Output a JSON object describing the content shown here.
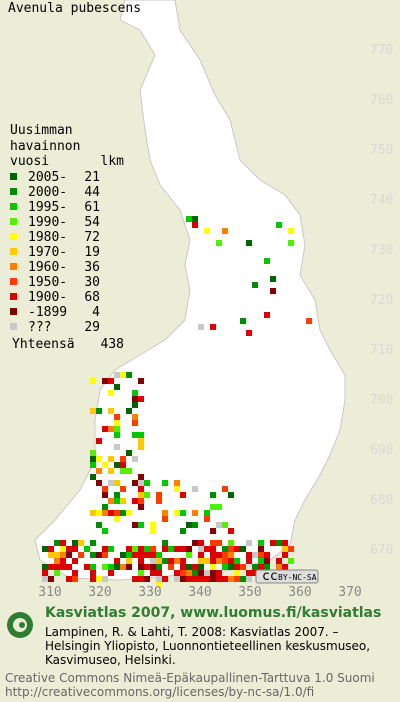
{
  "title": "Avenula pubescens",
  "legend": {
    "heading": [
      "Uusimman",
      "havainnon",
      "vuosi"
    ],
    "count_heading": "lkm",
    "rows": [
      {
        "label": "2005-",
        "count": 21,
        "color": "#006400"
      },
      {
        "label": "2000-",
        "count": 44,
        "color": "#008c00"
      },
      {
        "label": "1995-",
        "count": 61,
        "color": "#00c800"
      },
      {
        "label": "1990-",
        "count": 54,
        "color": "#50f000"
      },
      {
        "label": "1980-",
        "count": 72,
        "color": "#ffff00"
      },
      {
        "label": "1970-",
        "count": 19,
        "color": "#ffc800"
      },
      {
        "label": "1960-",
        "count": 36,
        "color": "#ff8000"
      },
      {
        "label": "1950-",
        "count": 30,
        "color": "#ff3c00"
      },
      {
        "label": "1900-",
        "count": 68,
        "color": "#dc0000"
      },
      {
        "label": "-1899",
        "count": 4,
        "color": "#820000"
      },
      {
        "label": "???",
        "count": 29,
        "color": "#c8c8c8"
      }
    ],
    "total_label": "Yhteensä",
    "total": 438
  },
  "grid": {
    "northing": [
      770,
      760,
      750,
      740,
      730,
      720,
      710,
      700,
      690,
      680,
      670
    ],
    "easting": [
      310,
      320,
      330,
      340,
      350,
      360,
      370
    ]
  },
  "license_badge": "BY-NC-SA",
  "footer": {
    "site": "Kasviatlas 2007, www.luomus.fi/kasviatlas",
    "citation": [
      "Lampinen, R. & Lahti, T. 2008: Kasviatlas 2007. –",
      "Helsingin Yliopisto, Luonnontieteellinen keskusmuseo,",
      "Kasvimuseo, Helsinki."
    ],
    "license": [
      "Creative Commons Nimeä-Epäkaupallinen-Tarttuva 1.0 Suomi",
      "http://creativecommons.org/licenses/by-nc-sa/1.0/fi"
    ]
  }
}
